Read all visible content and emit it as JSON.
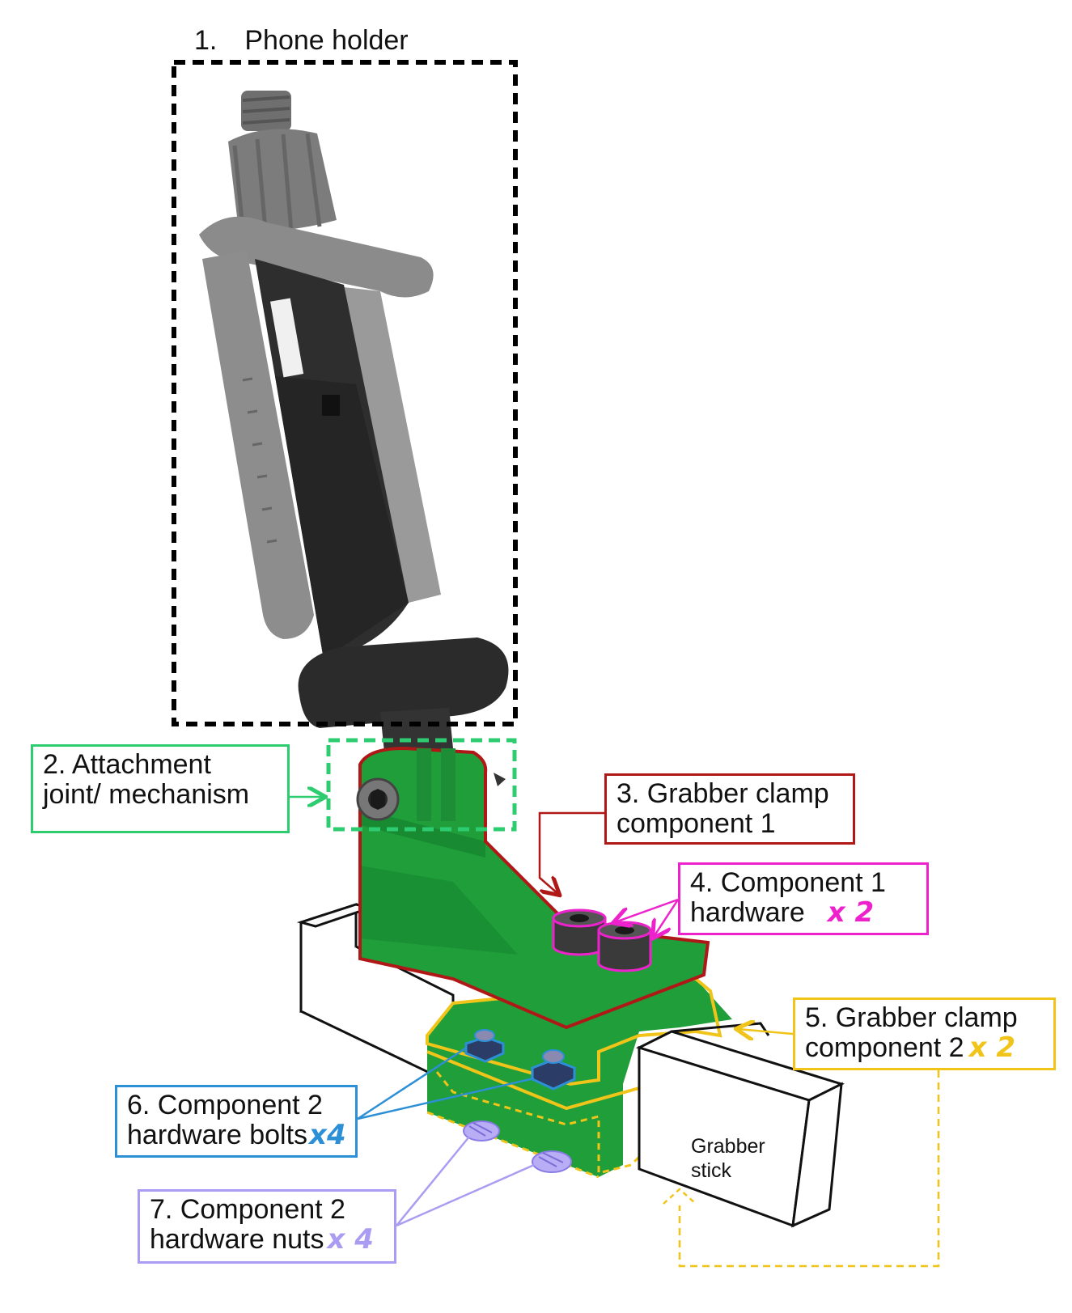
{
  "labels": {
    "phone_holder": {
      "number": "1.",
      "text": "Phone holder"
    },
    "attachment": {
      "line1": "2. Attachment",
      "line2": "joint/ mechanism"
    },
    "clamp1": {
      "line1": "3. Grabber clamp",
      "line2": "component 1"
    },
    "hardware1": {
      "line1": "4. Component 1",
      "line2": "hardware",
      "multiplier": "x 2"
    },
    "clamp2": {
      "line1": "5. Grabber clamp",
      "line2": "component 2",
      "multiplier": "x 2"
    },
    "bolts": {
      "line1": "6. Component 2",
      "line2": "hardware bolts",
      "multiplier": "x4"
    },
    "nuts": {
      "line1": "7. Component 2",
      "line2": "hardware nuts",
      "multiplier": "x 4"
    },
    "grabber_stick": {
      "line1": "Grabber",
      "line2": "stick"
    }
  },
  "colors": {
    "phone_holder_box": "#000000",
    "attachment": "#2ecc71",
    "clamp1": "#b01818",
    "hardware1": "#ee22cc",
    "clamp2": "#f0c419",
    "bolts": "#2d8fd6",
    "nuts": "#a99cf2",
    "printed_part": "#1f9e3a",
    "phone_holder_dark": "#2b2b2b",
    "phone_holder_grey": "#7d7d7d"
  }
}
